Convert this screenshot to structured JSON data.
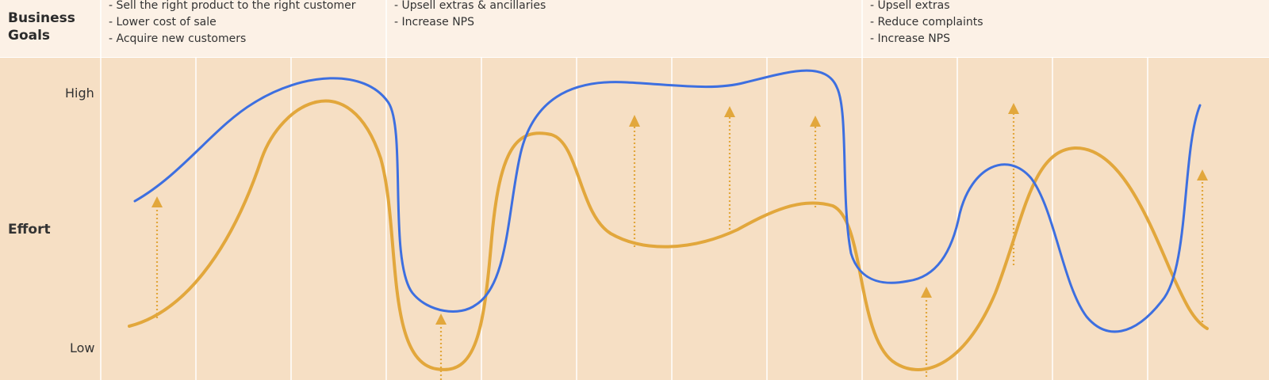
{
  "business_goals": {
    "label_line1": "Business",
    "label_line2": "Goals",
    "columns": [
      [
        "- Sell the right product to the right customer",
        "- Lower cost of sale",
        "- Acquire new customers"
      ],
      [
        "- Upsell extras & ancillaries",
        "- Increase NPS"
      ],
      [
        "- Upsell extras",
        "- Reduce complaints",
        "- Increase NPS"
      ]
    ]
  },
  "effort": {
    "row_label": "Effort",
    "high_label": "High",
    "low_label": "Low"
  },
  "colors": {
    "band_background": "#fcf1e6",
    "chart_background": "#f6dfc4",
    "blue_curve": "#3d6fe0",
    "orange_curve": "#e2a73c",
    "grid_line": "#ffffff"
  }
}
